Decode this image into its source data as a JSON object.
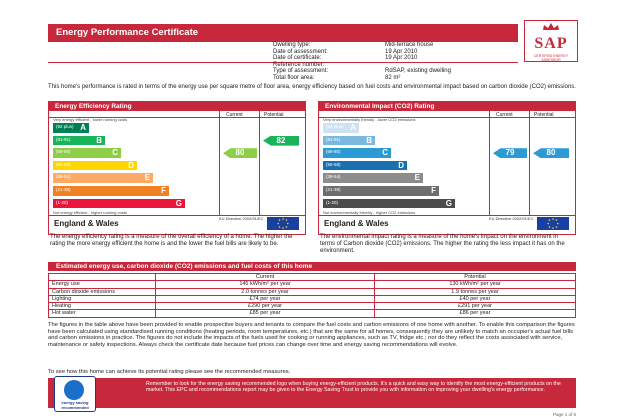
{
  "header": {
    "title": "Energy Performance Certificate"
  },
  "logo": {
    "text": "SAP",
    "subtext": "CERTIFIED ENERGY ASSESSOR"
  },
  "details": [
    {
      "label": "Dwelling type:",
      "value": "Mid-terrace house"
    },
    {
      "label": "Date of assessment:",
      "value": "19 Apr 2010"
    },
    {
      "label": "Date of certificate:",
      "value": "19 Apr 2010"
    },
    {
      "label": "Reference number:",
      "value": ""
    },
    {
      "label": "Type of assessment:",
      "value": "RdSAP, existing dwelling"
    },
    {
      "label": "Total floor area:",
      "value": "82 m²"
    }
  ],
  "intro": "This home's performance is rated in terms of the energy use per square metre of floor area, energy efficiency based on fuel costs and environmental impact based on carbon dioxide (CO2) emissions.",
  "efficiency": {
    "title": "Energy Efficiency Rating",
    "current_label": "Current",
    "potential_label": "Potential",
    "scale_top": "Very energy efficient - lower running costs",
    "scale_bottom": "Not energy efficient - higher running costs",
    "bands": [
      {
        "range": "(92 plus)",
        "letter": "A",
        "color": "#008054"
      },
      {
        "range": "(81-91)",
        "letter": "B",
        "color": "#19b459"
      },
      {
        "range": "(69-80)",
        "letter": "C",
        "color": "#8dce46"
      },
      {
        "range": "(55-68)",
        "letter": "D",
        "color": "#ffd500"
      },
      {
        "range": "(39-54)",
        "letter": "E",
        "color": "#fcaa65"
      },
      {
        "range": "(21-38)",
        "letter": "F",
        "color": "#ef8023"
      },
      {
        "range": "(1-20)",
        "letter": "G",
        "color": "#e9153b"
      }
    ],
    "current": 80,
    "potential": 82,
    "current_color": "#8dce46",
    "potential_color": "#19b459",
    "region": "England & Wales",
    "eu_text": "EU Directive 2002/91/EC",
    "description": "The energy efficiency rating is a measure of the overall efficiency of a home. The higher the rating the more energy efficient the home is and the lower the fuel bills are likely to be."
  },
  "environment": {
    "title": "Environmental Impact (CO2) Rating",
    "current_label": "Current",
    "potential_label": "Potential",
    "scale_top": "Very environmentally friendly - lower CO2 emissions",
    "scale_bottom": "Not environmentally friendly - higher CO2 emissions",
    "bands": [
      {
        "range": "(92 plus)",
        "letter": "A",
        "color": "#cfe2f3"
      },
      {
        "range": "(81-91)",
        "letter": "B",
        "color": "#7ab8e0"
      },
      {
        "range": "(69-80)",
        "letter": "C",
        "color": "#2c9ad5"
      },
      {
        "range": "(55-68)",
        "letter": "D",
        "color": "#1a6fb0"
      },
      {
        "range": "(39-54)",
        "letter": "E",
        "color": "#8c8c8c"
      },
      {
        "range": "(21-38)",
        "letter": "F",
        "color": "#6e6e6e"
      },
      {
        "range": "(1-20)",
        "letter": "G",
        "color": "#4c4c4c"
      }
    ],
    "current": 79,
    "potential": 80,
    "current_color": "#2c9ad5",
    "potential_color": "#2c9ad5",
    "region": "England & Wales",
    "eu_text": "EU Directive 2002/91/EC",
    "description": "The environmental impact rating is a measure of the home's impact on the environment in terms of Carbon dioxide (CO2) emissions. The higher the rating the less impact it has on the environment."
  },
  "estimates": {
    "title": "Estimated energy use, carbon dioxide (CO2) emissions and fuel costs of this home",
    "header": [
      "",
      "Current",
      "Potential"
    ],
    "rows": [
      [
        "Energy use",
        "145 kWh/m² per year",
        "130 kWh/m² per year"
      ],
      [
        "Carbon dioxide emissions",
        "2.0 tonnes per year",
        "1.9 tonnes per year"
      ],
      [
        "Lighting",
        "£74 per year",
        "£40 per year"
      ],
      [
        "Heating",
        "£290 per year",
        "£291 per year"
      ],
      [
        "Hot water",
        "£85 per year",
        "£86 per year"
      ]
    ]
  },
  "paragraph": "The figures in the table above have been provided to enable prospective buyers and tenants to compare the fuel costs and carbon emissions of one home with another. To enable this comparison the figures have been calculated using standardised running conditions (heating periods, room temperatures, etc.) that are the same for all homes, consequently they are unlikely to match an occupier's actual fuel bills and carbon emissions in practice. The figures do not include the impacts of the fuels used for cooking or running appliances, such as TV, fridge etc.; nor do they reflect the costs associated with service, maintenance or safety inspections. Always check the certificate date because fuel prices can change over time and energy saving recommendations will evolve.",
  "footer_line": "To see how this home can achieve its potential rating please see the recommended measures.",
  "energy_saving": {
    "logo_text": "energy saving recommended",
    "text": "Remember to look for the energy saving recommended logo when buying energy-efficient products. It's a quick and easy way to identify the most energy-efficient products on the market. This EPC and recommendations report may be given to the Energy Saving Trust to provide you with information on improving your dwelling's energy performance."
  },
  "page_no": "Page 1 of 6"
}
